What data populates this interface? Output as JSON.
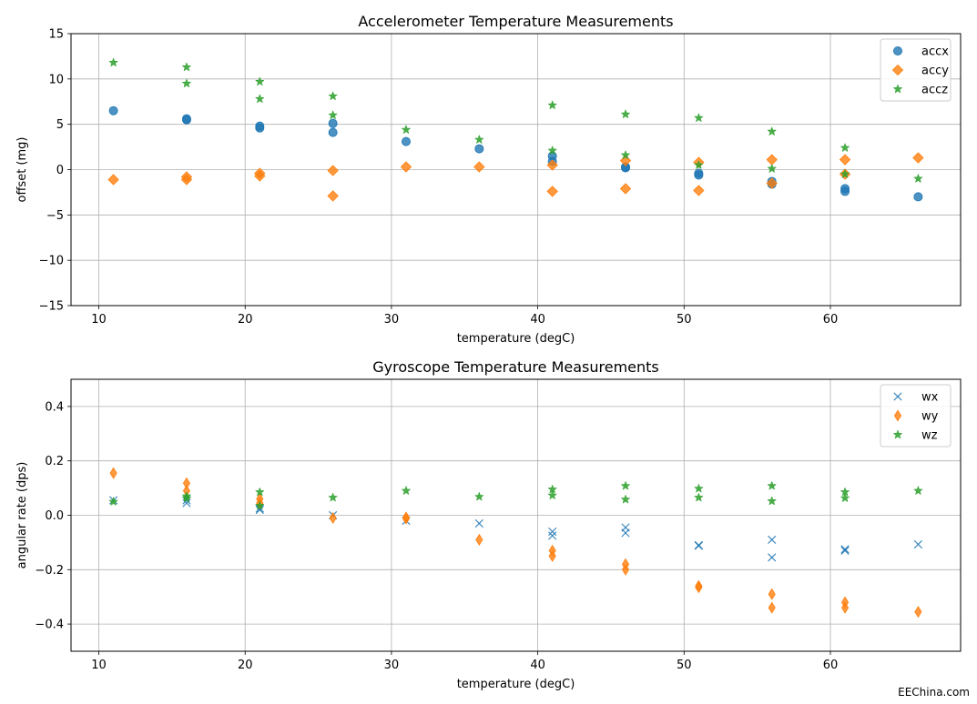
{
  "watermark": "EEChina.com",
  "colors": {
    "blue": "#1f77b4",
    "orange": "#ff7f0e",
    "green": "#2ca02c"
  },
  "chart_data": [
    {
      "type": "scatter",
      "title": "Accelerometer Temperature Measurements",
      "xlabel": "temperature (degC)",
      "ylabel": "offset (mg)",
      "xlim": [
        8.1,
        68.9
      ],
      "ylim": [
        -15,
        15
      ],
      "xticks": [
        10,
        20,
        30,
        40,
        50,
        60
      ],
      "xtick_labels": [
        "10",
        "20",
        "30",
        "40",
        "50",
        "60"
      ],
      "yticks": [
        -15,
        -10,
        -5,
        0,
        5,
        10,
        15
      ],
      "ytick_labels": [
        "−15",
        "−10",
        "−5",
        "0",
        "5",
        "10",
        "15"
      ],
      "grid": true,
      "legend_position": "top-right",
      "series": [
        {
          "name": "accx",
          "marker": "circle",
          "color": "#1f77b4",
          "x": [
            11,
            16,
            16,
            21,
            21,
            26,
            26,
            31,
            36,
            41,
            41,
            46,
            46,
            51,
            51,
            56,
            56,
            61,
            61,
            66
          ],
          "y": [
            6.5,
            5.5,
            5.6,
            4.6,
            4.8,
            4.1,
            5.1,
            3.1,
            2.3,
            1.5,
            0.9,
            0.3,
            0.2,
            -0.4,
            -0.6,
            -1.3,
            -1.6,
            -2.1,
            -2.4,
            -3.0
          ]
        },
        {
          "name": "accy",
          "marker": "diamond",
          "color": "#ff7f0e",
          "x": [
            11,
            16,
            16,
            21,
            21,
            26,
            26,
            31,
            36,
            41,
            41,
            46,
            46,
            51,
            51,
            56,
            56,
            61,
            61,
            66
          ],
          "y": [
            -1.1,
            -1.1,
            -0.8,
            -0.4,
            -0.7,
            -0.1,
            -2.9,
            0.3,
            0.3,
            0.5,
            -2.4,
            1.0,
            -2.1,
            0.8,
            -2.3,
            1.1,
            -1.5,
            1.1,
            -0.5,
            1.3
          ]
        },
        {
          "name": "accz",
          "marker": "star",
          "color": "#2ca02c",
          "x": [
            11,
            16,
            16,
            21,
            21,
            26,
            26,
            31,
            36,
            41,
            41,
            46,
            46,
            51,
            51,
            56,
            56,
            61,
            61,
            66
          ],
          "y": [
            11.8,
            11.3,
            9.5,
            9.7,
            7.8,
            8.1,
            6.0,
            4.4,
            3.3,
            7.1,
            2.1,
            6.1,
            1.6,
            5.7,
            0.5,
            4.2,
            0.1,
            2.4,
            -0.5,
            -1.0
          ]
        }
      ]
    },
    {
      "type": "scatter",
      "title": "Gyroscope Temperature Measurements",
      "xlabel": "temperature (degC)",
      "ylabel": "angular rate (dps)",
      "xlim": [
        8.1,
        68.9
      ],
      "ylim": [
        -0.5,
        0.5
      ],
      "xticks": [
        10,
        20,
        30,
        40,
        50,
        60
      ],
      "xtick_labels": [
        "10",
        "20",
        "30",
        "40",
        "50",
        "60"
      ],
      "yticks": [
        -0.4,
        -0.2,
        0.0,
        0.2,
        0.4
      ],
      "ytick_labels": [
        "−0.4",
        "−0.2",
        "0.0",
        "0.2",
        "0.4"
      ],
      "grid": true,
      "legend_position": "top-right",
      "series": [
        {
          "name": "wx",
          "marker": "x",
          "color": "#1f77b4",
          "x": [
            11,
            16,
            16,
            21,
            21,
            26,
            31,
            36,
            41,
            41,
            46,
            46,
            51,
            51,
            56,
            56,
            61,
            61,
            66
          ],
          "y": [
            0.055,
            0.055,
            0.045,
            0.025,
            0.02,
            0.0,
            -0.02,
            -0.03,
            -0.06,
            -0.075,
            -0.045,
            -0.065,
            -0.11,
            -0.112,
            -0.09,
            -0.155,
            -0.125,
            -0.13,
            -0.107
          ]
        },
        {
          "name": "wy",
          "marker": "thin_diamond",
          "color": "#ff7f0e",
          "x": [
            11,
            16,
            16,
            21,
            21,
            26,
            31,
            31,
            36,
            41,
            41,
            46,
            46,
            51,
            51,
            56,
            56,
            61,
            61,
            66
          ],
          "y": [
            0.155,
            0.118,
            0.09,
            0.06,
            0.045,
            -0.01,
            -0.008,
            -0.012,
            -0.09,
            -0.13,
            -0.15,
            -0.18,
            -0.2,
            -0.26,
            -0.265,
            -0.29,
            -0.34,
            -0.32,
            -0.34,
            -0.355
          ]
        },
        {
          "name": "wz",
          "marker": "star",
          "color": "#2ca02c",
          "x": [
            11,
            16,
            16,
            21,
            21,
            26,
            31,
            36,
            41,
            41,
            46,
            46,
            51,
            51,
            56,
            56,
            61,
            61,
            66
          ],
          "y": [
            0.05,
            0.07,
            0.062,
            0.085,
            0.035,
            0.065,
            0.09,
            0.068,
            0.095,
            0.073,
            0.108,
            0.058,
            0.098,
            0.065,
            0.108,
            0.052,
            0.085,
            0.063,
            0.09
          ]
        }
      ]
    }
  ]
}
